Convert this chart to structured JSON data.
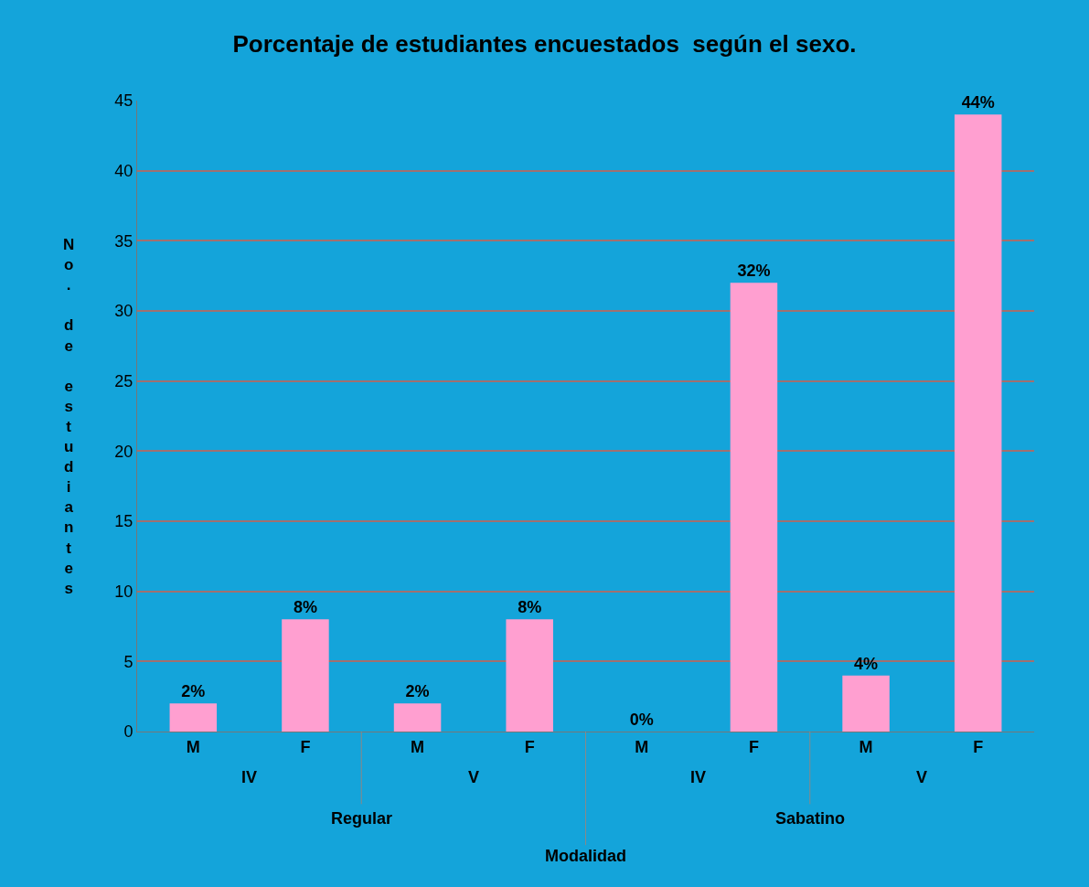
{
  "chart_data": {
    "type": "bar",
    "title": "Porcentaje de estudiantes encuestados  según el sexo.",
    "categories": [
      "M",
      "F",
      "M",
      "F",
      "M",
      "F",
      "M",
      "F"
    ],
    "values": [
      2,
      8,
      2,
      8,
      0,
      32,
      4,
      44
    ],
    "value_labels": [
      "2%",
      "8%",
      "2%",
      "8%",
      "0%",
      "32%",
      "4%",
      "44%"
    ],
    "color": "#ff9fd0",
    "ylabel": "No. de estudiantes",
    "annotations": [
      "IV",
      "V",
      "IV",
      "V",
      "Regular",
      "Sabatino",
      "Modalidad"
    ],
    "ylim": [
      0,
      45
    ],
    "yticks": [
      0,
      5,
      10,
      15,
      20,
      25,
      30,
      35,
      40,
      45
    ],
    "grid": "y"
  }
}
